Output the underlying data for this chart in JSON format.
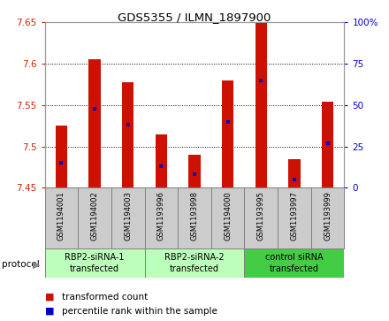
{
  "title": "GDS5355 / ILMN_1897900",
  "samples": [
    "GSM1194001",
    "GSM1194002",
    "GSM1194003",
    "GSM1193996",
    "GSM1193998",
    "GSM1194000",
    "GSM1193995",
    "GSM1193997",
    "GSM1193999"
  ],
  "transformed_counts": [
    7.525,
    7.605,
    7.578,
    7.515,
    7.49,
    7.58,
    7.65,
    7.485,
    7.554
  ],
  "percentile_ranks": [
    15,
    48,
    38,
    13,
    8,
    40,
    65,
    5,
    27
  ],
  "ylim_left": [
    7.45,
    7.65
  ],
  "ylim_right": [
    0,
    100
  ],
  "yticks_left": [
    7.45,
    7.5,
    7.55,
    7.6,
    7.65
  ],
  "yticks_right": [
    0,
    25,
    50,
    75,
    100
  ],
  "groups": [
    {
      "label": "RBP2-siRNA-1\ntransfected",
      "start": 0,
      "end": 3,
      "color": "#bbffbb"
    },
    {
      "label": "RBP2-siRNA-2\ntransfected",
      "start": 3,
      "end": 6,
      "color": "#bbffbb"
    },
    {
      "label": "control siRNA\ntransfected",
      "start": 6,
      "end": 9,
      "color": "#44cc44"
    }
  ],
  "bar_color": "#cc1100",
  "dot_color": "#0000cc",
  "bar_bottom": 7.45,
  "plot_bg_color": "#ffffff",
  "tick_label_color_left": "#cc2200",
  "tick_label_color_right": "#0000cc",
  "bar_width": 0.35,
  "sample_box_color": "#cccccc",
  "spine_color": "#999999"
}
